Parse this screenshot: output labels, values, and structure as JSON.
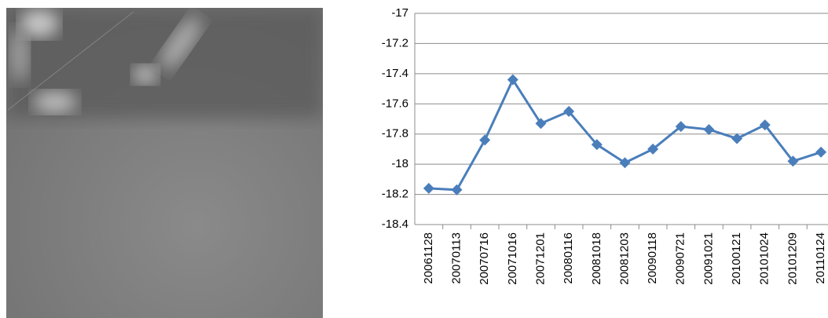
{
  "chart_data": {
    "type": "line",
    "categories": [
      "20061128",
      "20070113",
      "20070716",
      "20071016",
      "20071201",
      "20080116",
      "20081018",
      "20081203",
      "20090118",
      "20090721",
      "20091021",
      "20100121",
      "20101024",
      "20101209",
      "20110124"
    ],
    "series": [
      {
        "color": "#4a7ebb",
        "values": [
          -18.16,
          -18.17,
          -17.84,
          -17.44,
          -17.73,
          -17.65,
          -17.87,
          -17.99,
          -17.9,
          -17.75,
          -17.77,
          -17.83,
          -17.74,
          -17.98,
          -17.92
        ]
      }
    ],
    "ylim": [
      -18.4,
      -17
    ],
    "yticks": [
      -17,
      -17.2,
      -17.4,
      -17.6,
      -17.8,
      -18,
      -18.2,
      -18.4
    ],
    "grid": true
  }
}
